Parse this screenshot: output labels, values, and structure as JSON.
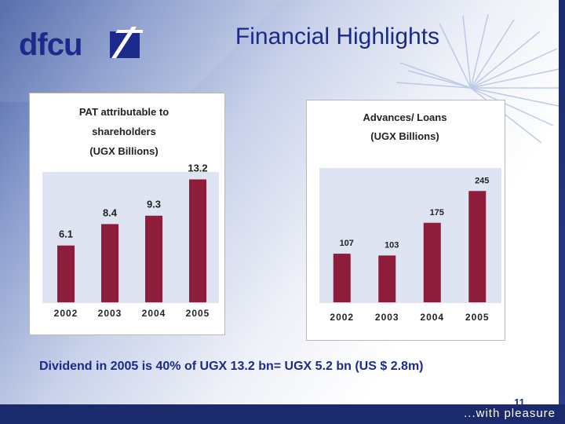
{
  "slide": {
    "title": "Financial Highlights",
    "logo_text": "dfcu",
    "caption": "Dividend in 2005 is 40%  of UGX 13.2 bn= UGX 5.2 bn (US $ 2.8m)",
    "page_number": "11",
    "tagline": "...with pleasure",
    "colors": {
      "title": "#1c2a8c",
      "bar": "#8e1d3b",
      "footer": "#1a2a6c",
      "chart_bg": "#dfe4f3"
    }
  },
  "chart_data": [
    {
      "type": "bar",
      "title_lines": [
        "PAT attributable to",
        "shareholders",
        "(UGX Billions)"
      ],
      "categories": [
        "2002",
        "2003",
        "2004",
        "2005"
      ],
      "values": [
        6.1,
        8.4,
        9.3,
        13.2
      ],
      "value_labels": [
        "6.1",
        "8.4",
        "9.3",
        "13.2"
      ],
      "ylim": [
        0,
        14
      ],
      "grid": false,
      "legend": "none"
    },
    {
      "type": "bar",
      "title_lines": [
        "Advances/ Loans",
        "(UGX Billions)"
      ],
      "categories": [
        "2002",
        "2003",
        "2004",
        "2005"
      ],
      "values": [
        107,
        103,
        175,
        245
      ],
      "value_labels": [
        "107",
        "103",
        "175",
        "245"
      ],
      "ylim": [
        0,
        280
      ],
      "grid": false,
      "legend": "none"
    }
  ]
}
